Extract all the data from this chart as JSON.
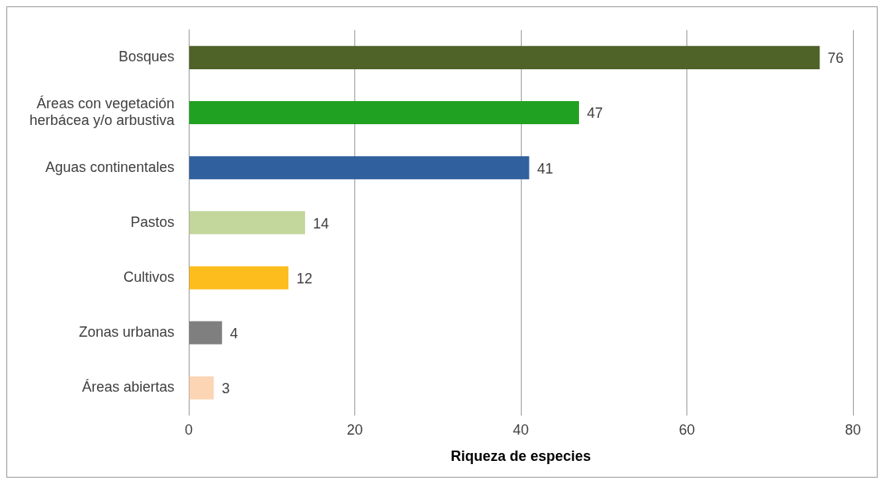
{
  "chart_data": {
    "type": "bar",
    "orientation": "horizontal",
    "xlabel": "Riqueza de especies",
    "categories": [
      "Bosques",
      "Áreas con vegetación\nherbácea y/o arbustiva",
      "Aguas continentales",
      "Pastos",
      "Cultivos",
      "Zonas urbanas",
      "Áreas abiertas"
    ],
    "values": [
      76,
      47,
      41,
      14,
      12,
      4,
      3
    ],
    "colors": [
      "#4f6228",
      "#21a121",
      "#31609e",
      "#c3d69b",
      "#fdbd1d",
      "#7f7f7f",
      "#fcd5b5"
    ],
    "xlim": [
      0,
      80
    ],
    "xticks": [
      0,
      20,
      40,
      60,
      80
    ],
    "grid": "x",
    "data_labels": true,
    "legend": false
  }
}
